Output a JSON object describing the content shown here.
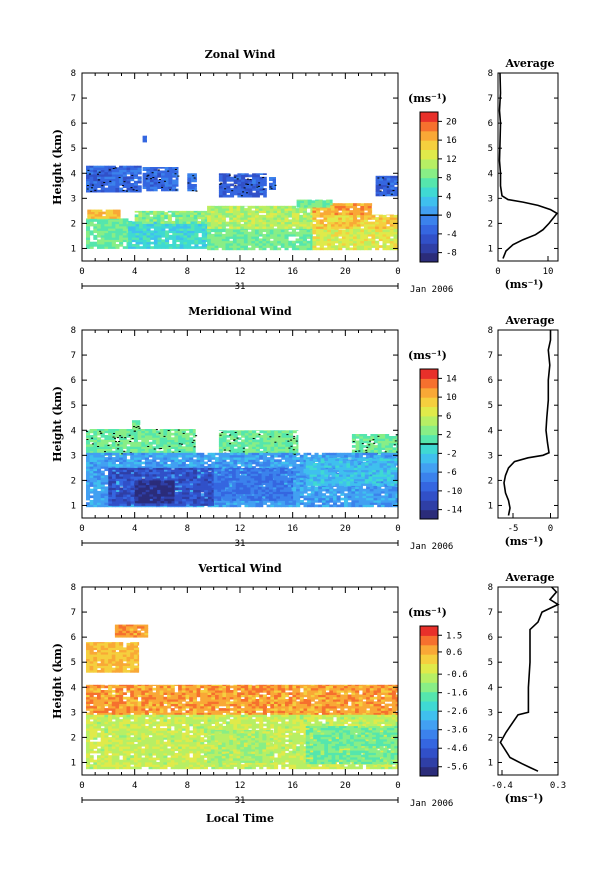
{
  "chart_data": [
    {
      "type": "heatmap",
      "title": "Zonal Wind",
      "ylabel": "Height (km)",
      "xlabel": "",
      "x_ticks": [
        "0",
        "4",
        "8",
        "12",
        "16",
        "20",
        "0"
      ],
      "y_ticks": [
        "1",
        "2",
        "3",
        "4",
        "5",
        "6",
        "7",
        "8"
      ],
      "date_row": {
        "day": "31",
        "month_year": "Jan 2006"
      },
      "colorbar": {
        "unit": "(ms⁻¹)",
        "ticks": [
          "20",
          "16",
          "12",
          "8",
          "4",
          "0",
          "-4",
          "-8"
        ],
        "range": [
          -10,
          22
        ],
        "contour_level": 0
      },
      "profile": {
        "title": "Average",
        "unit": "(ms⁻¹)",
        "x_ticks": [
          "0",
          "10"
        ],
        "xlim": [
          0,
          12
        ],
        "points": [
          [
            0.4,
            8
          ],
          [
            0.5,
            7.2
          ],
          [
            0.3,
            6.5
          ],
          [
            0.5,
            6
          ],
          [
            0.4,
            5.2
          ],
          [
            0.3,
            4.5
          ],
          [
            0.5,
            4
          ],
          [
            0.5,
            3.5
          ],
          [
            0.8,
            3.1
          ],
          [
            2,
            2.95
          ],
          [
            5,
            2.85
          ],
          [
            8,
            2.72
          ],
          [
            10.5,
            2.55
          ],
          [
            11.8,
            2.4
          ],
          [
            11,
            2.2
          ],
          [
            10.2,
            2
          ],
          [
            9,
            1.75
          ],
          [
            7.5,
            1.55
          ],
          [
            5,
            1.35
          ],
          [
            3,
            1.15
          ],
          [
            1.6,
            0.9
          ],
          [
            1,
            0.6
          ]
        ]
      },
      "patches": [
        {
          "x": 0.3,
          "y": 3.25,
          "w": 4.2,
          "h": 1.05,
          "v": -3
        },
        {
          "x": 4.6,
          "y": 3.3,
          "w": 2.7,
          "h": 0.95,
          "v": -2.5
        },
        {
          "x": 8,
          "y": 3.3,
          "w": 0.7,
          "h": 0.7,
          "v": -2
        },
        {
          "x": 10.4,
          "y": 3.05,
          "w": 3.6,
          "h": 0.95,
          "v": -3.5
        },
        {
          "x": 14.2,
          "y": 3.35,
          "w": 0.5,
          "h": 0.5,
          "v": -2
        },
        {
          "x": 22.3,
          "y": 3.1,
          "w": 1.7,
          "h": 0.8,
          "v": -3
        },
        {
          "x": 4.6,
          "y": 5.25,
          "w": 0.3,
          "h": 0.25,
          "v": -2
        },
        {
          "x": 0.3,
          "y": 1.0,
          "w": 3.2,
          "h": 1.2,
          "v": 8
        },
        {
          "x": 0.4,
          "y": 2.2,
          "w": 2.5,
          "h": 0.35,
          "v": 16
        },
        {
          "x": 3.5,
          "y": 1.0,
          "w": 6,
          "h": 1.1,
          "v": 5
        },
        {
          "x": 4,
          "y": 2.0,
          "w": 6,
          "h": 0.5,
          "v": 9
        },
        {
          "x": 9.5,
          "y": 0.95,
          "w": 8,
          "h": 0.85,
          "v": 8
        },
        {
          "x": 9.5,
          "y": 1.8,
          "w": 8,
          "h": 0.9,
          "v": 11
        },
        {
          "x": 17.5,
          "y": 0.95,
          "w": 6.5,
          "h": 0.85,
          "v": 13
        },
        {
          "x": 17.5,
          "y": 1.8,
          "w": 6.5,
          "h": 0.55,
          "v": 15
        },
        {
          "x": 17.5,
          "y": 2.35,
          "w": 4.5,
          "h": 0.45,
          "v": 17
        },
        {
          "x": 16.3,
          "y": 2.65,
          "w": 2.7,
          "h": 0.3,
          "v": 8
        }
      ]
    },
    {
      "type": "heatmap",
      "title": "Meridional Wind",
      "ylabel": "Height (km)",
      "xlabel": "",
      "x_ticks": [
        "0",
        "4",
        "8",
        "12",
        "16",
        "20",
        "0"
      ],
      "y_ticks": [
        "1",
        "2",
        "3",
        "4",
        "5",
        "6",
        "7",
        "8"
      ],
      "date_row": {
        "day": "31",
        "month_year": "Jan 2006"
      },
      "colorbar": {
        "unit": "(ms⁻¹)",
        "ticks": [
          "14",
          "10",
          "6",
          "2",
          "-2",
          "-6",
          "-10",
          "-14"
        ],
        "range": [
          -16,
          16
        ],
        "contour_level": 0
      },
      "profile": {
        "title": "Average",
        "unit": "(ms⁻¹)",
        "x_ticks": [
          "-5",
          "0"
        ],
        "xlim": [
          -7,
          1
        ],
        "points": [
          [
            0,
            8
          ],
          [
            0,
            7.6
          ],
          [
            -0.3,
            7.2
          ],
          [
            -0.1,
            6.6
          ],
          [
            -0.3,
            6
          ],
          [
            -0.3,
            5.2
          ],
          [
            -0.5,
            4.5
          ],
          [
            -0.6,
            4
          ],
          [
            -0.4,
            3.5
          ],
          [
            -0.2,
            3.1
          ],
          [
            -1,
            3.0
          ],
          [
            -3,
            2.9
          ],
          [
            -4.8,
            2.75
          ],
          [
            -5.6,
            2.5
          ],
          [
            -6,
            2.2
          ],
          [
            -6.2,
            1.9
          ],
          [
            -6,
            1.5
          ],
          [
            -5.6,
            1.2
          ],
          [
            -5.4,
            0.9
          ],
          [
            -5.6,
            0.6
          ]
        ]
      },
      "patches": [
        {
          "x": 0.3,
          "y": 3.0,
          "w": 8.3,
          "h": 1.05,
          "v": 2
        },
        {
          "x": 10.4,
          "y": 3.0,
          "w": 6,
          "h": 1.0,
          "v": 2
        },
        {
          "x": 20.5,
          "y": 3.05,
          "w": 3.5,
          "h": 0.8,
          "v": 2
        },
        {
          "x": 3.8,
          "y": 4.05,
          "w": 0.6,
          "h": 0.35,
          "v": 2
        },
        {
          "x": 0.3,
          "y": 0.95,
          "w": 24,
          "h": 2.15,
          "v": -5
        },
        {
          "x": 17,
          "y": 1.8,
          "w": 7,
          "h": 1.1,
          "v": -3
        },
        {
          "x": 2,
          "y": 1.0,
          "w": 8,
          "h": 1.5,
          "v": -11
        },
        {
          "x": 4,
          "y": 1.1,
          "w": 3,
          "h": 0.9,
          "v": -15
        },
        {
          "x": 10,
          "y": 1.2,
          "w": 6,
          "h": 1.3,
          "v": -8
        }
      ]
    },
    {
      "type": "heatmap",
      "title": "Vertical Wind",
      "ylabel": "Height (km)",
      "xlabel": "Local Time",
      "x_ticks": [
        "0",
        "4",
        "8",
        "12",
        "16",
        "20",
        "0"
      ],
      "y_ticks": [
        "1",
        "2",
        "3",
        "4",
        "5",
        "6",
        "7",
        "8"
      ],
      "date_row": {
        "day": "31",
        "month_year": "Jan 2006"
      },
      "colorbar": {
        "unit": "(ms⁻¹)",
        "ticks": [
          "1.5",
          "0.6",
          "-0.6",
          "-1.6",
          "-2.6",
          "-3.6",
          "-4.6",
          "-5.6"
        ],
        "range": [
          -6.1,
          2.0
        ]
      },
      "profile": {
        "title": "Average",
        "unit": "(ms⁻¹)",
        "x_ticks": [
          "-0.4",
          "0.3"
        ],
        "xlim": [
          -0.45,
          0.3
        ],
        "points": [
          [
            0.22,
            8
          ],
          [
            0.28,
            7.8
          ],
          [
            0.2,
            7.5
          ],
          [
            0.3,
            7.3
          ],
          [
            0.1,
            7
          ],
          [
            0.05,
            6.6
          ],
          [
            -0.05,
            6.3
          ],
          [
            -0.05,
            5
          ],
          [
            -0.07,
            4
          ],
          [
            -0.07,
            3
          ],
          [
            -0.2,
            2.9
          ],
          [
            -0.35,
            2.2
          ],
          [
            -0.42,
            1.8
          ],
          [
            -0.3,
            1.2
          ],
          [
            -0.15,
            0.95
          ],
          [
            -0.05,
            0.8
          ],
          [
            0.05,
            0.65
          ]
        ]
      },
      "patches": [
        {
          "x": 0.3,
          "y": 2.9,
          "w": 24,
          "h": 1.2,
          "v": 0.8
        },
        {
          "x": 0.3,
          "y": 0.75,
          "w": 24,
          "h": 2.15,
          "v": -0.6
        },
        {
          "x": 17,
          "y": 0.95,
          "w": 7,
          "h": 1.5,
          "v": -1.5
        },
        {
          "x": 9.5,
          "y": 1.0,
          "w": 5,
          "h": 1.3,
          "v": -0.9
        },
        {
          "x": 2.5,
          "y": 6.0,
          "w": 2.5,
          "h": 0.5,
          "v": 0.9
        },
        {
          "x": 0.3,
          "y": 4.6,
          "w": 4,
          "h": 1.2,
          "v": 0.5
        }
      ]
    }
  ]
}
